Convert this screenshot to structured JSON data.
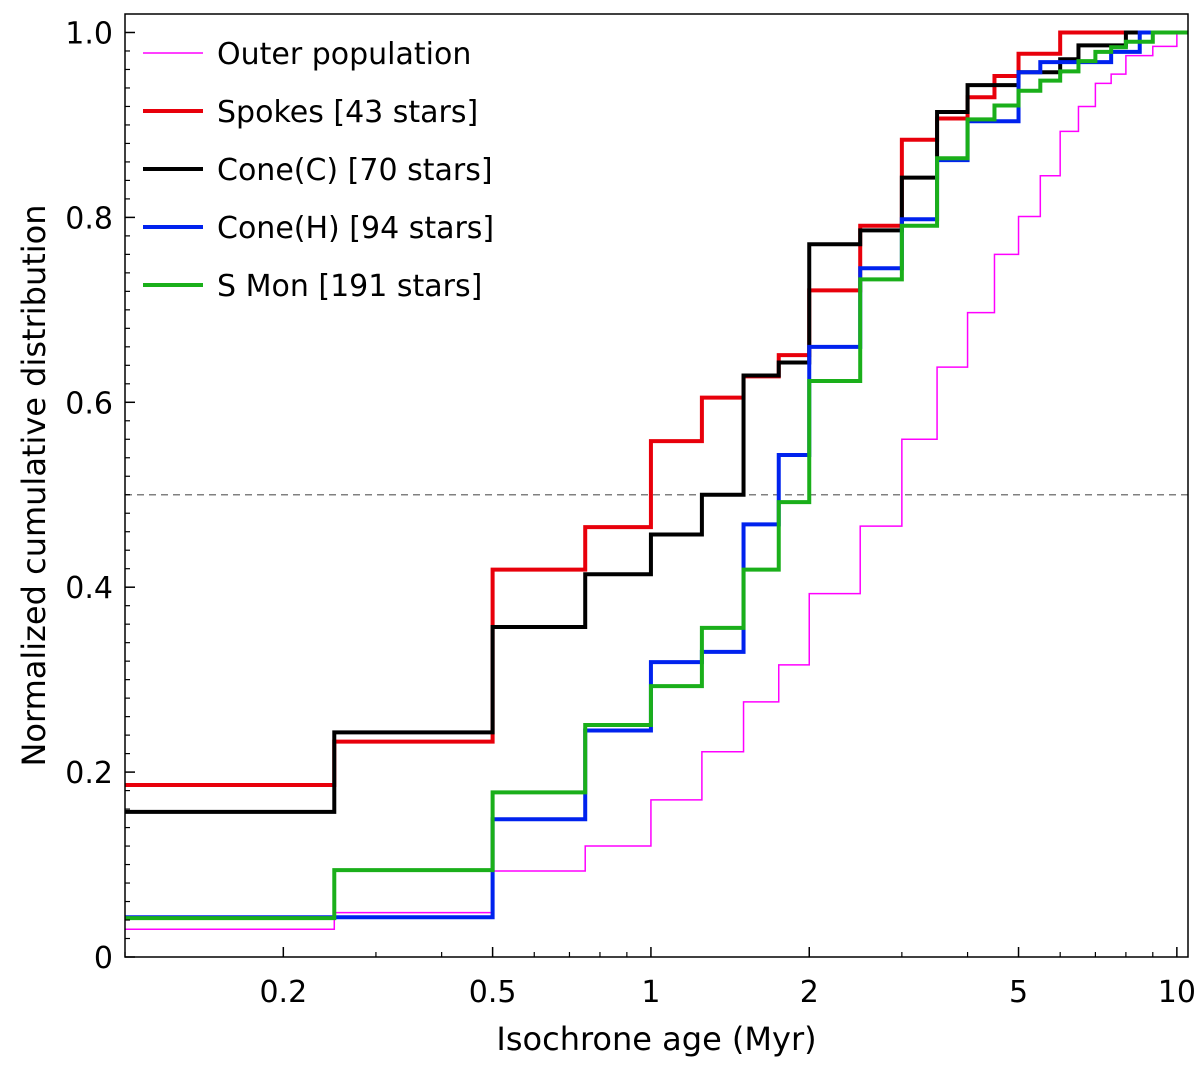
{
  "chart_data": {
    "type": "line",
    "step": true,
    "xscale": "log",
    "xlabel": "Isochrone age (Myr)",
    "ylabel": "Normalized cumulative distribution",
    "xlim": [
      0.1,
      10.5
    ],
    "ylim": [
      0,
      1.02
    ],
    "xticks": [
      {
        "value": 0.2,
        "label": "0.2"
      },
      {
        "value": 0.5,
        "label": "0.5"
      },
      {
        "value": 1,
        "label": "1"
      },
      {
        "value": 2,
        "label": "2"
      },
      {
        "value": 5,
        "label": "5"
      },
      {
        "value": 10,
        "label": "10"
      }
    ],
    "yticks": [
      {
        "value": 0,
        "label": "0"
      },
      {
        "value": 0.2,
        "label": "0.2"
      },
      {
        "value": 0.4,
        "label": "0.4"
      },
      {
        "value": 0.6,
        "label": "0.6"
      },
      {
        "value": 0.8,
        "label": "0.8"
      },
      {
        "value": 1.0,
        "label": "1.0"
      }
    ],
    "reference_line": {
      "y": 0.5,
      "color": "#808080",
      "style": "dashed"
    },
    "legend_position": "top-left",
    "series": [
      {
        "name": "Outer population",
        "color": "#ff00ff",
        "width": 1.5,
        "x": [
          0.1,
          0.25,
          0.5,
          0.75,
          1.0,
          1.25,
          1.5,
          1.75,
          2.0,
          2.5,
          3.0,
          3.5,
          4.0,
          4.5,
          5.0,
          5.5,
          6.0,
          6.5,
          7.0,
          7.5,
          8.0,
          9.0,
          10.0,
          10.5
        ],
        "y": [
          0.03,
          0.048,
          0.093,
          0.12,
          0.17,
          0.222,
          0.276,
          0.316,
          0.393,
          0.466,
          0.56,
          0.638,
          0.697,
          0.76,
          0.801,
          0.845,
          0.893,
          0.92,
          0.945,
          0.955,
          0.975,
          0.985,
          1.0,
          1.0
        ]
      },
      {
        "name": "Spokes [43 stars]",
        "color": "#e8000b",
        "width": 4,
        "x": [
          0.1,
          0.25,
          0.5,
          0.75,
          1.0,
          1.25,
          1.5,
          1.75,
          2.0,
          2.5,
          3.0,
          3.5,
          4.0,
          4.5,
          5.0,
          6.0,
          7.0,
          8.0,
          9.0,
          10.5
        ],
        "y": [
          0.186,
          0.233,
          0.419,
          0.465,
          0.558,
          0.605,
          0.628,
          0.651,
          0.721,
          0.791,
          0.884,
          0.907,
          0.93,
          0.953,
          0.977,
          1.0,
          1.0,
          1.0,
          1.0,
          1.0
        ]
      },
      {
        "name": "Cone(C) [70 stars]",
        "color": "#000000",
        "width": 4,
        "x": [
          0.1,
          0.25,
          0.5,
          0.75,
          1.0,
          1.25,
          1.5,
          1.75,
          2.0,
          2.5,
          3.0,
          3.5,
          4.0,
          5.0,
          6.0,
          6.5,
          8.0,
          9.0,
          10.5
        ],
        "y": [
          0.157,
          0.243,
          0.357,
          0.414,
          0.457,
          0.5,
          0.629,
          0.643,
          0.771,
          0.786,
          0.843,
          0.914,
          0.943,
          0.957,
          0.971,
          0.986,
          1.0,
          1.0,
          1.0
        ]
      },
      {
        "name": "Cone(H) [94 stars]",
        "color": "#0022ee",
        "width": 4,
        "x": [
          0.1,
          0.25,
          0.5,
          0.75,
          1.0,
          1.25,
          1.5,
          1.75,
          2.0,
          2.5,
          3.0,
          3.5,
          4.0,
          4.5,
          5.0,
          5.5,
          6.5,
          7.5,
          8.5,
          10.5
        ],
        "y": [
          0.043,
          0.043,
          0.149,
          0.245,
          0.319,
          0.33,
          0.468,
          0.543,
          0.66,
          0.745,
          0.798,
          0.862,
          0.904,
          0.904,
          0.957,
          0.968,
          0.968,
          0.979,
          1.0,
          1.0
        ]
      },
      {
        "name": "S Mon [191 stars]",
        "color": "#1aaf1a",
        "width": 4,
        "x": [
          0.1,
          0.25,
          0.5,
          0.75,
          1.0,
          1.25,
          1.5,
          1.75,
          2.0,
          2.5,
          3.0,
          3.5,
          4.0,
          4.5,
          5.0,
          5.5,
          6.0,
          6.5,
          7.0,
          7.5,
          8.0,
          9.0,
          10.5
        ],
        "y": [
          0.042,
          0.094,
          0.178,
          0.251,
          0.293,
          0.356,
          0.419,
          0.492,
          0.623,
          0.733,
          0.791,
          0.864,
          0.906,
          0.921,
          0.937,
          0.948,
          0.958,
          0.969,
          0.979,
          0.984,
          0.99,
          1.0,
          1.0
        ]
      }
    ]
  }
}
